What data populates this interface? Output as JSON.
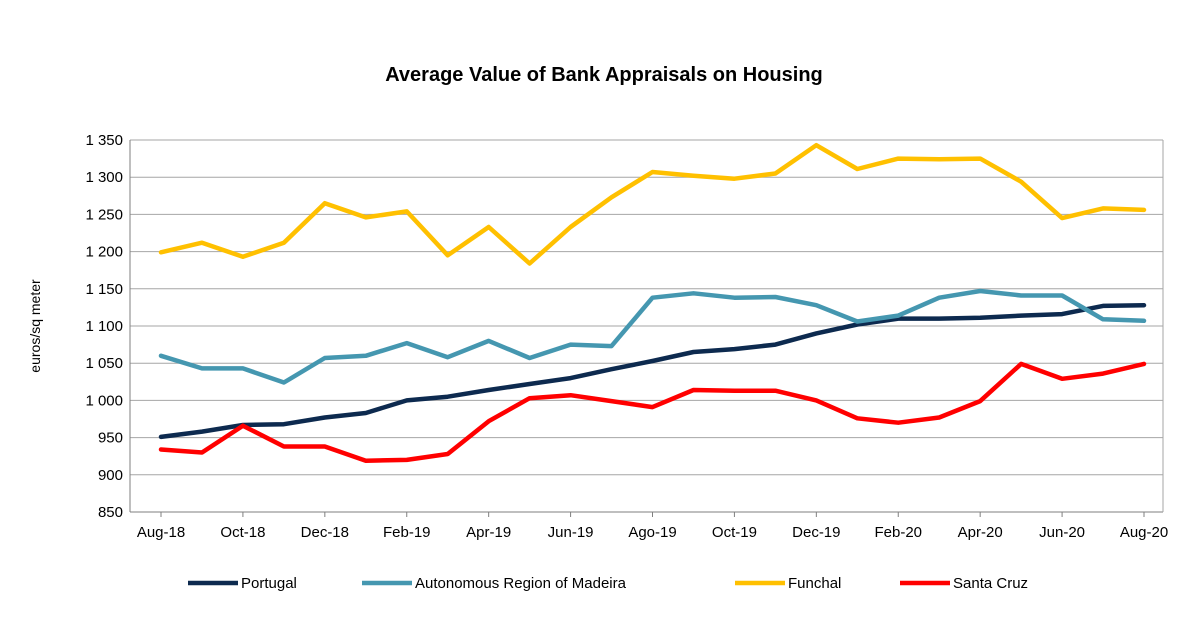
{
  "chart_data": {
    "type": "line",
    "title": "Average Value of Bank Appraisals on Housing",
    "ylabel": "euros/sq meter",
    "xlabel": "",
    "ylim": [
      850,
      1350
    ],
    "yticks": [
      850,
      900,
      950,
      1000,
      1050,
      1100,
      1150,
      1200,
      1250,
      1300,
      1350
    ],
    "ytick_labels": [
      "850",
      "900",
      "950",
      "1 000",
      "1 050",
      "1 100",
      "1 150",
      "1 200",
      "1 250",
      "1 300",
      "1 350"
    ],
    "categories": [
      "Aug-18",
      "Sep-18",
      "Oct-18",
      "Nov-18",
      "Dec-18",
      "Jan-19",
      "Feb-19",
      "Mar-19",
      "Apr-19",
      "May-19",
      "Jun-19",
      "Jul-19",
      "Ago-19",
      "Sep-19",
      "Oct-19",
      "Nov-19",
      "Dec-19",
      "Jan-20",
      "Feb-20",
      "Mar-20",
      "Apr-20",
      "May-20",
      "Jun-20",
      "Jul-20",
      "Aug-20"
    ],
    "xtick_labels": [
      "Aug-18",
      "Oct-18",
      "Dec-18",
      "Feb-19",
      "Apr-19",
      "Jun-19",
      "Ago-19",
      "Oct-19",
      "Dec-19",
      "Feb-20",
      "Apr-20",
      "Jun-20",
      "Aug-20"
    ],
    "grid": true,
    "legend_position": "bottom",
    "series": [
      {
        "name": "Portugal",
        "color": "#0d2a4f",
        "values": [
          951,
          958,
          967,
          968,
          977,
          983,
          1000,
          1005,
          1014,
          1022,
          1030,
          1042,
          1053,
          1065,
          1069,
          1075,
          1090,
          1102,
          1110,
          1110,
          1111,
          1114,
          1116,
          1127,
          1128
        ]
      },
      {
        "name": "Autonomous Region of Madeira",
        "color": "#4597b0",
        "values": [
          1060,
          1043,
          1043,
          1024,
          1057,
          1060,
          1077,
          1058,
          1080,
          1057,
          1075,
          1073,
          1138,
          1144,
          1138,
          1139,
          1128,
          1106,
          1114,
          1138,
          1147,
          1141,
          1141,
          1109,
          1107
        ]
      },
      {
        "name": "Funchal",
        "color": "#ffc000",
        "values": [
          1199,
          1212,
          1193,
          1212,
          1265,
          1246,
          1254,
          1195,
          1233,
          1184,
          1233,
          1273,
          1307,
          1302,
          1298,
          1305,
          1343,
          1311,
          1325,
          1324,
          1325,
          1294,
          1245,
          1258,
          1256
        ]
      },
      {
        "name": "Santa Cruz",
        "color": "#ff0000",
        "values": [
          934,
          930,
          966,
          938,
          938,
          919,
          920,
          928,
          972,
          1003,
          1007,
          999,
          991,
          1014,
          1013,
          1013,
          1000,
          976,
          970,
          977,
          999,
          1049,
          1029,
          1036,
          1049
        ]
      }
    ]
  }
}
